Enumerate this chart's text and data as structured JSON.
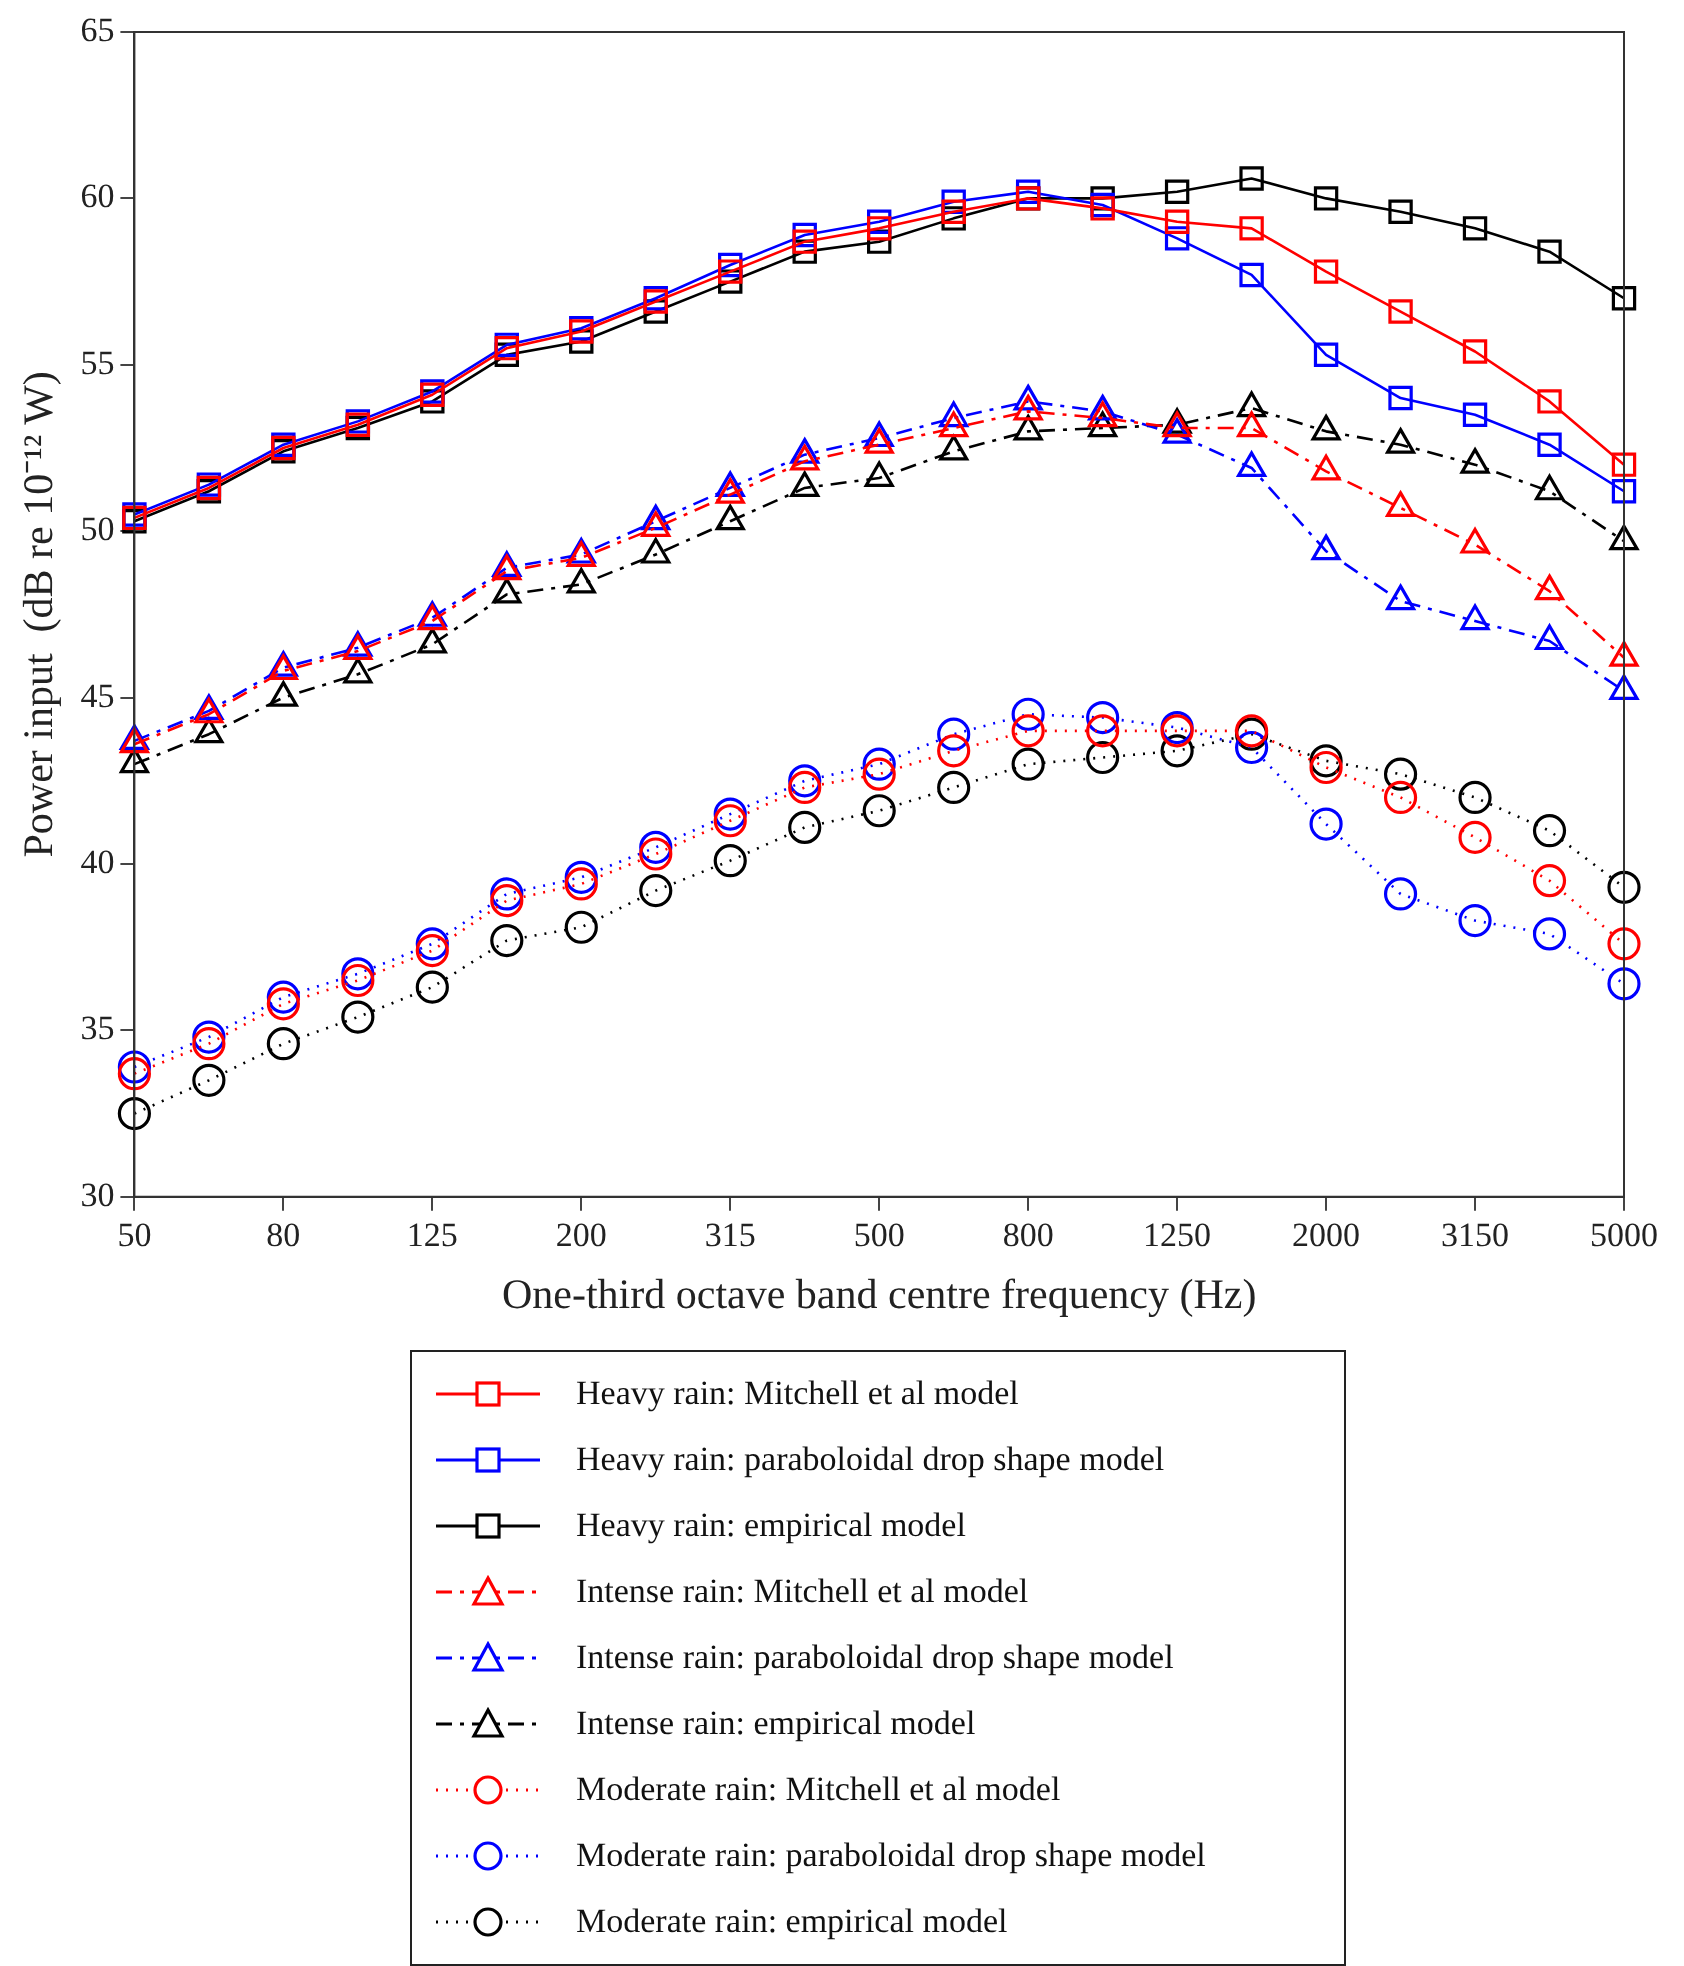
{
  "chart_data": {
    "type": "line",
    "xlabel": "One-third octave band centre frequency (Hz)",
    "ylabel": "Power input  (dB re 10⁻¹² W)",
    "categories": [
      "50",
      null,
      "80",
      null,
      "125",
      null,
      "200",
      null,
      "315",
      null,
      "500",
      null,
      "800",
      null,
      "1250",
      null,
      "2000",
      null,
      "3150",
      null,
      "5000"
    ],
    "ylim": [
      30,
      65
    ],
    "yticks": [
      30,
      35,
      40,
      45,
      50,
      55,
      60,
      65
    ],
    "grid": false,
    "legend": "bottom",
    "series": [
      {
        "name": "Heavy rain: Mitchell et al model",
        "color": "#ff0000",
        "marker": "square",
        "line_style": "solid",
        "values": [
          50.4,
          51.3,
          52.5,
          53.2,
          54.1,
          55.5,
          56.0,
          56.9,
          57.8,
          58.7,
          59.1,
          59.6,
          60.0,
          59.7,
          59.3,
          59.1,
          57.8,
          56.6,
          55.4,
          53.9,
          52.0
        ]
      },
      {
        "name": "Heavy rain: paraboloidal drop shape model",
        "color": "#0000ff",
        "marker": "square",
        "line_style": "solid",
        "values": [
          50.5,
          51.4,
          52.6,
          53.3,
          54.2,
          55.6,
          56.1,
          57.0,
          58.0,
          58.9,
          59.3,
          59.9,
          60.2,
          59.8,
          58.8,
          57.7,
          55.3,
          54.0,
          53.5,
          52.6,
          51.2
        ]
      },
      {
        "name": "Heavy rain: empirical model",
        "color": "#000000",
        "marker": "square",
        "line_style": "solid",
        "values": [
          50.3,
          51.2,
          52.4,
          53.1,
          53.9,
          55.3,
          55.7,
          56.6,
          57.5,
          58.4,
          58.7,
          59.4,
          60.0,
          60.0,
          60.2,
          60.6,
          60.0,
          59.6,
          59.1,
          58.4,
          57.0
        ]
      },
      {
        "name": "Intense rain: Mitchell et al model",
        "color": "#ff0000",
        "marker": "triangle",
        "line_style": "dashed",
        "values": [
          43.6,
          44.5,
          45.8,
          46.4,
          47.3,
          48.8,
          49.2,
          50.1,
          51.1,
          52.1,
          52.6,
          53.1,
          53.6,
          53.4,
          53.1,
          53.1,
          51.8,
          50.7,
          49.6,
          48.2,
          46.2
        ]
      },
      {
        "name": "Intense rain: paraboloidal drop shape model",
        "color": "#0000ff",
        "marker": "triangle",
        "line_style": "dashed",
        "values": [
          43.7,
          44.6,
          45.9,
          46.5,
          47.4,
          48.9,
          49.3,
          50.3,
          51.3,
          52.3,
          52.8,
          53.4,
          53.9,
          53.6,
          52.9,
          51.9,
          49.4,
          47.9,
          47.3,
          46.7,
          45.2
        ]
      },
      {
        "name": "Intense rain: empirical model",
        "color": "#000000",
        "marker": "triangle",
        "line_style": "dashed",
        "values": [
          43.0,
          43.9,
          45.0,
          45.7,
          46.6,
          48.1,
          48.4,
          49.3,
          50.3,
          51.3,
          51.6,
          52.4,
          53.0,
          53.1,
          53.2,
          53.7,
          53.0,
          52.6,
          52.0,
          51.2,
          49.7
        ]
      },
      {
        "name": "Moderate rain: Mitchell et al model",
        "color": "#ff0000",
        "marker": "circle",
        "line_style": "dotted",
        "values": [
          33.7,
          34.6,
          35.8,
          36.5,
          37.4,
          38.9,
          39.4,
          40.3,
          41.3,
          42.3,
          42.7,
          43.4,
          44.0,
          44.0,
          44.0,
          44.0,
          42.9,
          42.0,
          40.8,
          39.5,
          37.6
        ]
      },
      {
        "name": "Moderate rain: paraboloidal drop shape model",
        "color": "#0000ff",
        "marker": "circle",
        "line_style": "dotted",
        "values": [
          33.9,
          34.8,
          36.0,
          36.7,
          37.6,
          39.1,
          39.6,
          40.5,
          41.5,
          42.5,
          43.0,
          43.9,
          44.5,
          44.4,
          44.1,
          43.5,
          41.2,
          39.1,
          38.3,
          37.9,
          36.4
        ]
      },
      {
        "name": "Moderate rain: empirical model",
        "color": "#000000",
        "marker": "circle",
        "line_style": "dotted",
        "values": [
          32.5,
          33.5,
          34.6,
          35.4,
          36.3,
          37.7,
          38.1,
          39.2,
          40.1,
          41.1,
          41.6,
          42.3,
          43.0,
          43.2,
          43.4,
          43.9,
          43.1,
          42.7,
          42.0,
          41.0,
          39.3
        ]
      }
    ]
  }
}
